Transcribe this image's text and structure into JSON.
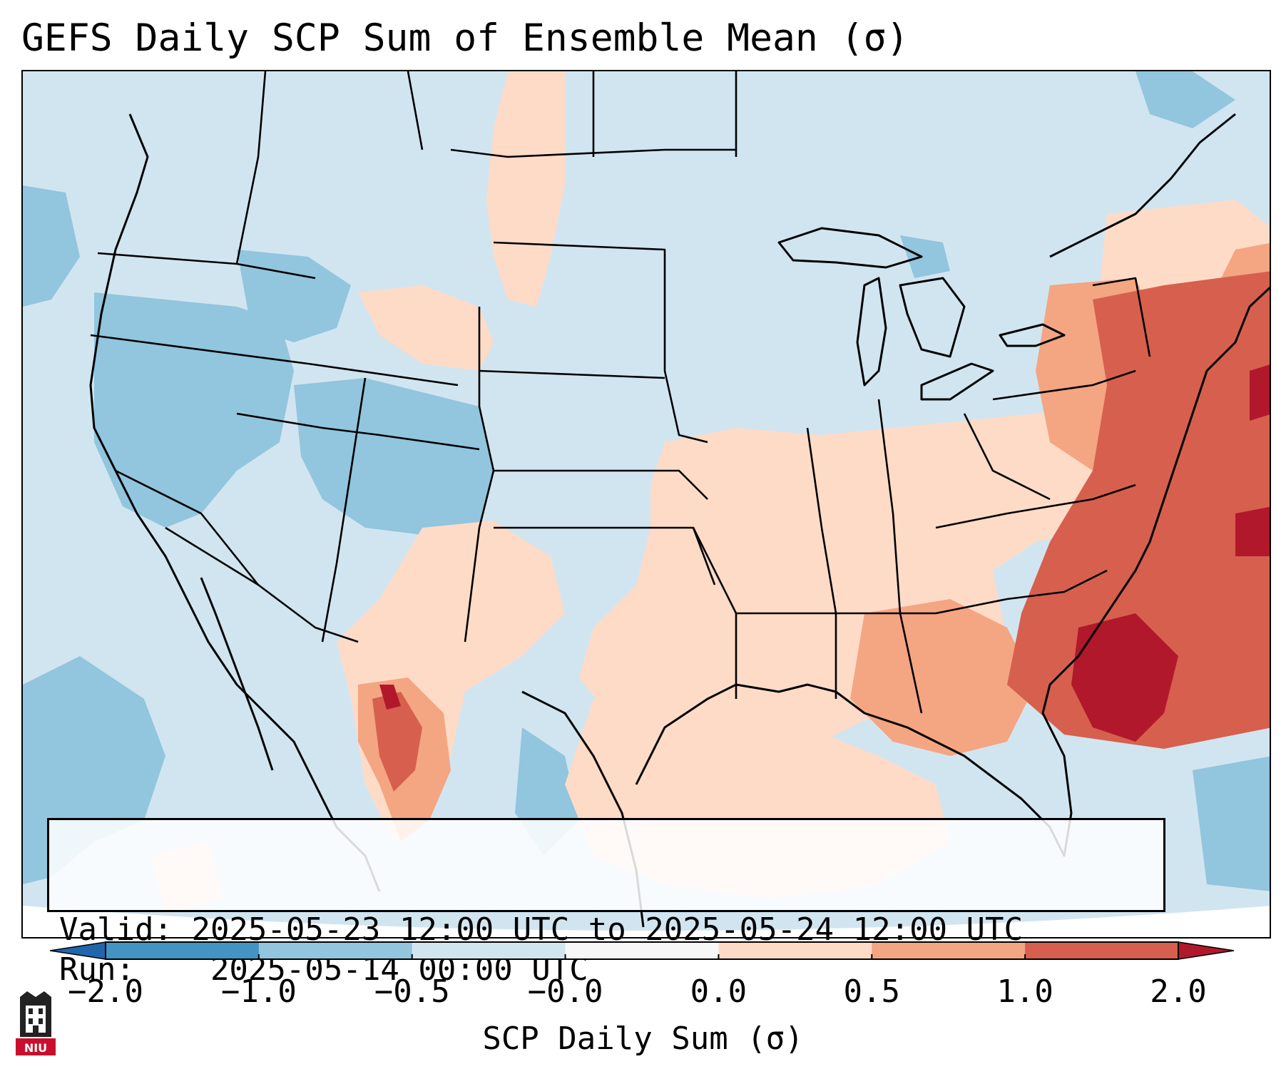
{
  "title": "GEFS Daily SCP Sum of Ensemble Mean (σ)",
  "info": {
    "valid_label": "Valid:",
    "valid_value": "2025-05-23 12:00 UTC to 2025-05-24 12:00 UTC",
    "run_label": "Run:",
    "run_value": "2025-05-14 00:00 UTC"
  },
  "colorbar": {
    "label": "SCP Daily Sum (σ)",
    "ticks": [
      "−2.0",
      "−1.0",
      "−0.5",
      "−0.0",
      "0.0",
      "0.5",
      "1.0",
      "2.0"
    ],
    "bin_colors": [
      "#4393c3",
      "#92c5de",
      "#d1e5f0",
      "#f7f7f7",
      "#fddbc7",
      "#f4a582",
      "#d6604d"
    ],
    "under_color": "#2166ac",
    "over_color": "#b2182b"
  },
  "legend_colors": {
    "very_low": "#4393c3",
    "low": "#92c5de",
    "near_zero_neg": "#d1e5f0",
    "near_zero_pos": "#fddbc7",
    "moderate": "#f4a582",
    "high": "#d6604d",
    "very_high": "#b2182b"
  },
  "logo": {
    "text": "NIU"
  }
}
